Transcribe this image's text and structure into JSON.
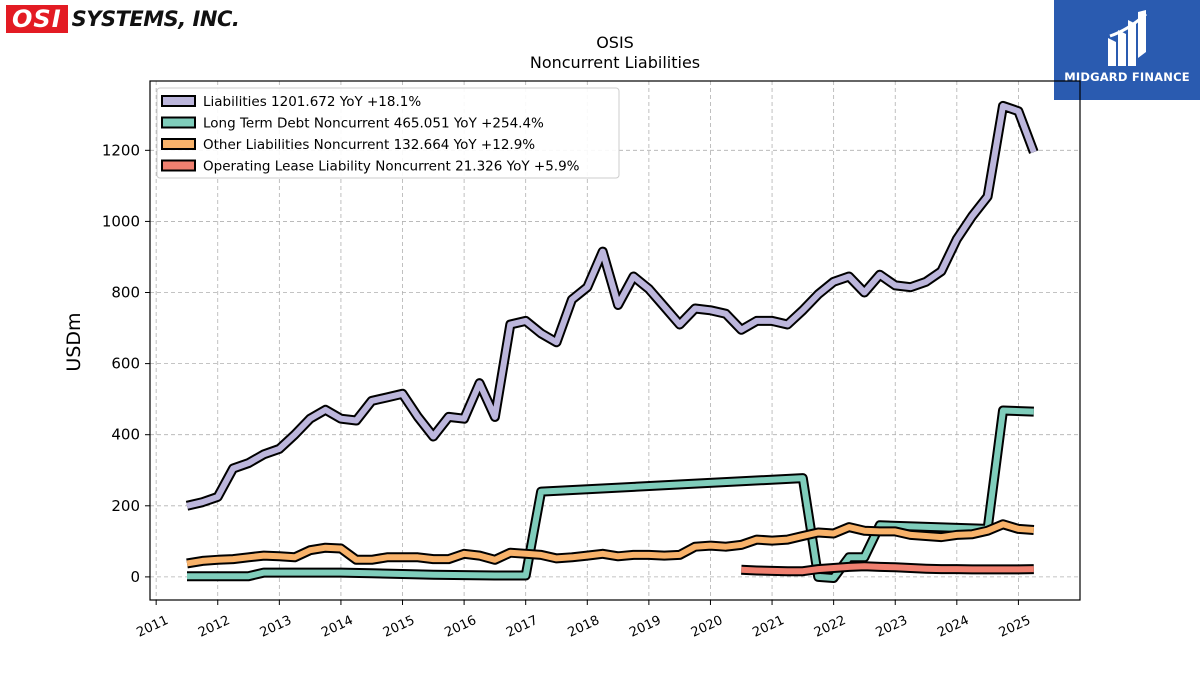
{
  "logo": {
    "left_text": "OSI",
    "right_text": "SYSTEMS, INC.",
    "color": "#e31b23"
  },
  "brand": {
    "name": "MIDGARD FINANCE",
    "color": "#2a5bb0",
    "icon": "midgard-logo-icon"
  },
  "chart_data": {
    "type": "line",
    "title": "OSIS",
    "subtitle": "Noncurrent  Liabilities",
    "xlabel": "",
    "ylabel": "USDm",
    "xlim": [
      2010.9,
      2026.0
    ],
    "ylim": [
      -65,
      1395
    ],
    "yticks": [
      0,
      200,
      400,
      600,
      800,
      1000,
      1200
    ],
    "xticks": [
      "2011",
      "2012",
      "2013",
      "2014",
      "2015",
      "2016",
      "2017",
      "2018",
      "2019",
      "2020",
      "2021",
      "2022",
      "2023",
      "2024",
      "2025"
    ],
    "grid": true,
    "legend_position": "top-left",
    "series": [
      {
        "name": "Liabilities",
        "legend": "Liabilities  1201.672 YoY +18.1%",
        "color": "#bcb6dc",
        "points": [
          [
            2011.5,
            200
          ],
          [
            2011.75,
            210
          ],
          [
            2012.0,
            225
          ],
          [
            2012.25,
            305
          ],
          [
            2012.5,
            320
          ],
          [
            2012.75,
            345
          ],
          [
            2013.0,
            360
          ],
          [
            2013.25,
            400
          ],
          [
            2013.5,
            445
          ],
          [
            2013.75,
            470
          ],
          [
            2014.0,
            445
          ],
          [
            2014.25,
            440
          ],
          [
            2014.5,
            495
          ],
          [
            2014.75,
            505
          ],
          [
            2015.0,
            515
          ],
          [
            2015.25,
            450
          ],
          [
            2015.5,
            395
          ],
          [
            2015.75,
            450
          ],
          [
            2016.0,
            445
          ],
          [
            2016.25,
            545
          ],
          [
            2016.5,
            450
          ],
          [
            2016.75,
            710
          ],
          [
            2017.0,
            720
          ],
          [
            2017.25,
            685
          ],
          [
            2017.5,
            660
          ],
          [
            2017.75,
            780
          ],
          [
            2018.0,
            815
          ],
          [
            2018.25,
            915
          ],
          [
            2018.5,
            765
          ],
          [
            2018.75,
            845
          ],
          [
            2019.0,
            810
          ],
          [
            2019.25,
            760
          ],
          [
            2019.5,
            710
          ],
          [
            2019.75,
            755
          ],
          [
            2020.0,
            750
          ],
          [
            2020.25,
            740
          ],
          [
            2020.5,
            695
          ],
          [
            2020.75,
            720
          ],
          [
            2021.0,
            720
          ],
          [
            2021.25,
            710
          ],
          [
            2021.5,
            750
          ],
          [
            2021.75,
            795
          ],
          [
            2022.0,
            830
          ],
          [
            2022.25,
            845
          ],
          [
            2022.5,
            800
          ],
          [
            2022.75,
            850
          ],
          [
            2023.0,
            820
          ],
          [
            2023.25,
            815
          ],
          [
            2023.5,
            830
          ],
          [
            2023.75,
            860
          ],
          [
            2024.0,
            950
          ],
          [
            2024.25,
            1015
          ],
          [
            2024.5,
            1070
          ],
          [
            2024.75,
            1325
          ],
          [
            2025.0,
            1310
          ],
          [
            2025.25,
            1195
          ]
        ]
      },
      {
        "name": "Long Term Debt Noncurrent",
        "legend": "Long Term Debt Noncurrent  465.051 YoY +254.4%",
        "color": "#7fcdbb",
        "points": [
          [
            2011.5,
            2
          ],
          [
            2012.0,
            2
          ],
          [
            2012.5,
            2
          ],
          [
            2012.75,
            12
          ],
          [
            2013.0,
            12
          ],
          [
            2013.5,
            12
          ],
          [
            2014.0,
            12
          ],
          [
            2014.5,
            10
          ],
          [
            2015.0,
            8
          ],
          [
            2015.5,
            6
          ],
          [
            2016.0,
            5
          ],
          [
            2016.5,
            4
          ],
          [
            2017.0,
            4
          ],
          [
            2017.25,
            240
          ],
          [
            2021.5,
            278
          ],
          [
            2021.75,
            0
          ],
          [
            2022.0,
            -3
          ],
          [
            2022.25,
            55
          ],
          [
            2022.5,
            55
          ],
          [
            2022.75,
            145
          ],
          [
            2024.5,
            135
          ],
          [
            2024.75,
            468
          ],
          [
            2025.25,
            465
          ]
        ]
      },
      {
        "name": "Other Liabilities Noncurrent",
        "legend": "Other Liabilities Noncurrent  132.664 YoY +12.9%",
        "color": "#f8b26a",
        "points": [
          [
            2011.5,
            38
          ],
          [
            2011.75,
            45
          ],
          [
            2012.0,
            48
          ],
          [
            2012.25,
            50
          ],
          [
            2012.5,
            55
          ],
          [
            2012.75,
            60
          ],
          [
            2013.0,
            58
          ],
          [
            2013.25,
            55
          ],
          [
            2013.5,
            75
          ],
          [
            2013.75,
            82
          ],
          [
            2014.0,
            80
          ],
          [
            2014.25,
            48
          ],
          [
            2014.5,
            48
          ],
          [
            2014.75,
            55
          ],
          [
            2015.0,
            55
          ],
          [
            2015.25,
            55
          ],
          [
            2015.5,
            50
          ],
          [
            2015.75,
            50
          ],
          [
            2016.0,
            65
          ],
          [
            2016.25,
            60
          ],
          [
            2016.5,
            48
          ],
          [
            2016.75,
            68
          ],
          [
            2017.0,
            65
          ],
          [
            2017.25,
            62
          ],
          [
            2017.5,
            52
          ],
          [
            2017.75,
            55
          ],
          [
            2018.0,
            60
          ],
          [
            2018.25,
            65
          ],
          [
            2018.5,
            58
          ],
          [
            2018.75,
            62
          ],
          [
            2019.0,
            62
          ],
          [
            2019.25,
            60
          ],
          [
            2019.5,
            62
          ],
          [
            2019.75,
            85
          ],
          [
            2020.0,
            88
          ],
          [
            2020.25,
            85
          ],
          [
            2020.5,
            90
          ],
          [
            2020.75,
            105
          ],
          [
            2021.0,
            102
          ],
          [
            2021.25,
            105
          ],
          [
            2021.5,
            115
          ],
          [
            2021.75,
            125
          ],
          [
            2022.0,
            122
          ],
          [
            2022.25,
            140
          ],
          [
            2022.5,
            130
          ],
          [
            2022.75,
            128
          ],
          [
            2023.0,
            128
          ],
          [
            2023.25,
            118
          ],
          [
            2023.5,
            115
          ],
          [
            2023.75,
            112
          ],
          [
            2024.0,
            118
          ],
          [
            2024.25,
            120
          ],
          [
            2024.5,
            130
          ],
          [
            2024.75,
            148
          ],
          [
            2025.0,
            135
          ],
          [
            2025.25,
            132
          ]
        ]
      },
      {
        "name": "Operating Lease Liability Noncurrent",
        "legend": "Operating Lease Liability Noncurrent  21.326 YoY +5.9%",
        "color": "#f08070",
        "points": [
          [
            2020.5,
            20
          ],
          [
            2020.75,
            18
          ],
          [
            2021.0,
            17
          ],
          [
            2021.25,
            16
          ],
          [
            2021.5,
            16
          ],
          [
            2021.75,
            22
          ],
          [
            2022.0,
            25
          ],
          [
            2022.25,
            28
          ],
          [
            2022.5,
            30
          ],
          [
            2022.75,
            28
          ],
          [
            2023.0,
            27
          ],
          [
            2023.25,
            25
          ],
          [
            2023.5,
            23
          ],
          [
            2023.75,
            22
          ],
          [
            2024.0,
            22
          ],
          [
            2024.25,
            21
          ],
          [
            2024.5,
            21
          ],
          [
            2024.75,
            21
          ],
          [
            2025.0,
            21
          ],
          [
            2025.25,
            22
          ]
        ]
      }
    ]
  }
}
